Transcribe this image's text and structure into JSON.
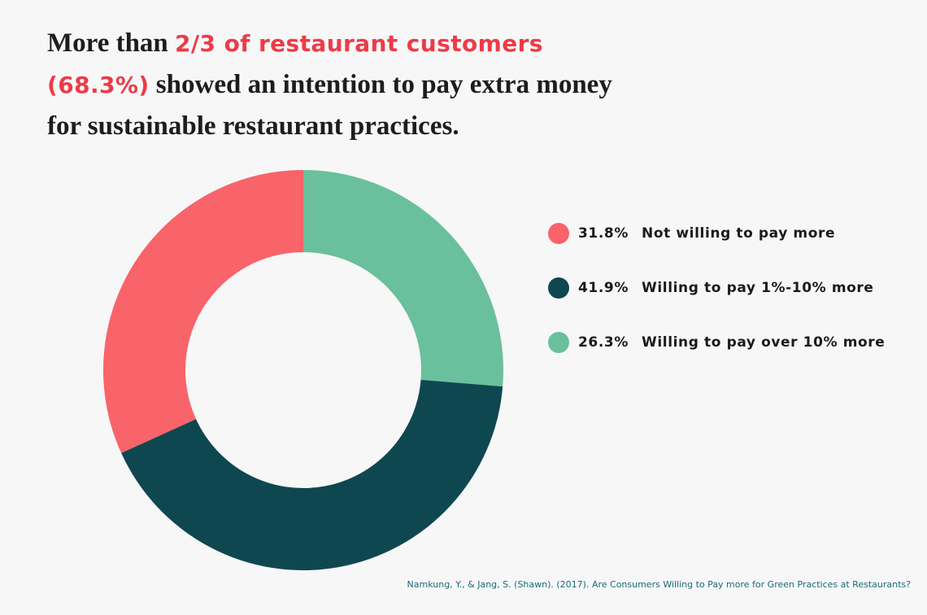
{
  "title": {
    "part1": "More than ",
    "highlight1": "2/3 of restaurant customers",
    "highlight2": "(68.3%)",
    "part2": " showed an intention to pay extra money",
    "part3": "for sustainable restaurant practices."
  },
  "colors": {
    "accent": "#ed3b48",
    "not_willing": "#f9636a",
    "willing_1_10": "#0f4751",
    "willing_over_10": "#6ac09c",
    "background": "#f7f7f7"
  },
  "chart_data": {
    "type": "pie",
    "donut": true,
    "categories": [
      "Not willing to pay more",
      "Willing to pay 1%-10% more",
      "Willing to pay over 10% more"
    ],
    "values": [
      31.8,
      41.9,
      26.3
    ],
    "value_labels": [
      "31.8%",
      "41.9%",
      "26.3%"
    ],
    "colors": [
      "#f9636a",
      "#0f4751",
      "#6ac09c"
    ],
    "legend_position": "right"
  },
  "legend": [
    {
      "pct": "31.8%",
      "label": "Not willing to pay more",
      "color": "#f9636a"
    },
    {
      "pct": "41.9%",
      "label": "Willing to pay 1%-10% more",
      "color": "#0f4751"
    },
    {
      "pct": "26.3%",
      "label": "Willing to pay over 10% more",
      "color": "#6ac09c"
    }
  ],
  "citation": "Namkung, Y., & Jang, S. (Shawn). (2017). Are Consumers Willing to Pay more for Green Practices at Restaurants?"
}
